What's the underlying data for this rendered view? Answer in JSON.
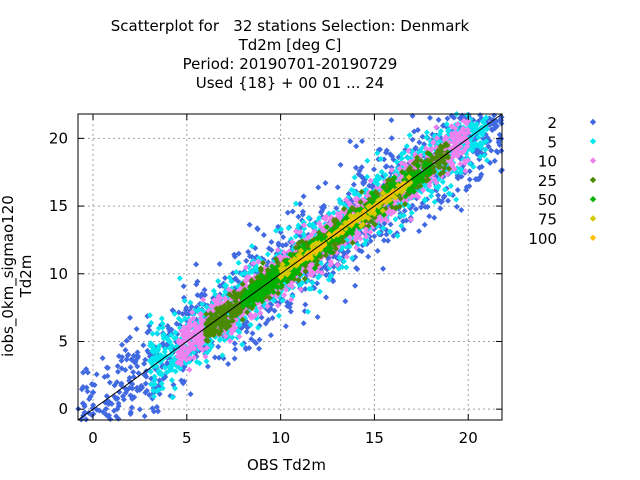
{
  "chart_data": {
    "type": "scatter",
    "title_lines": [
      "Scatterplot for   32 stations Selection: Denmark",
      "Td2m [deg C]",
      "Period: 20190701-20190729",
      "Used {18} + 00 01 ... 24"
    ],
    "xlabel": "OBS Td2m",
    "ylabel": "iobs_0km_sigmao120 Td2m",
    "xlim": [
      -0.8,
      21.8
    ],
    "ylim": [
      -0.8,
      21.8
    ],
    "xticks": [
      0,
      5,
      10,
      15,
      20
    ],
    "yticks": [
      0,
      5,
      10,
      15,
      20
    ],
    "grid": true,
    "diagonal_line": true,
    "legend_position": "right",
    "series": [
      {
        "name": "2",
        "color": "#4169e1",
        "band": 3.2,
        "xrange": [
          -0.8,
          21.8
        ],
        "samples": 1300
      },
      {
        "name": "5",
        "color": "#00e5ee",
        "band": 2.2,
        "xrange": [
          3.0,
          21.0
        ],
        "samples": 1200
      },
      {
        "name": "10",
        "color": "#ee82ee",
        "band": 1.5,
        "xrange": [
          4.5,
          20.0
        ],
        "samples": 1100
      },
      {
        "name": "25",
        "color": "#4a8a00",
        "band": 1.0,
        "xrange": [
          6.0,
          19.0
        ],
        "samples": 750
      },
      {
        "name": "50",
        "color": "#00b000",
        "band": 0.7,
        "xrange": [
          8.0,
          18.0
        ],
        "samples": 500
      },
      {
        "name": "75",
        "color": "#d4c800",
        "band": 0.45,
        "xrange": [
          10.0,
          17.0
        ],
        "samples": 160
      },
      {
        "name": "100",
        "color": "#ffc000",
        "band": 0.25,
        "xrange": [
          11.0,
          16.5
        ],
        "samples": 40
      }
    ]
  }
}
